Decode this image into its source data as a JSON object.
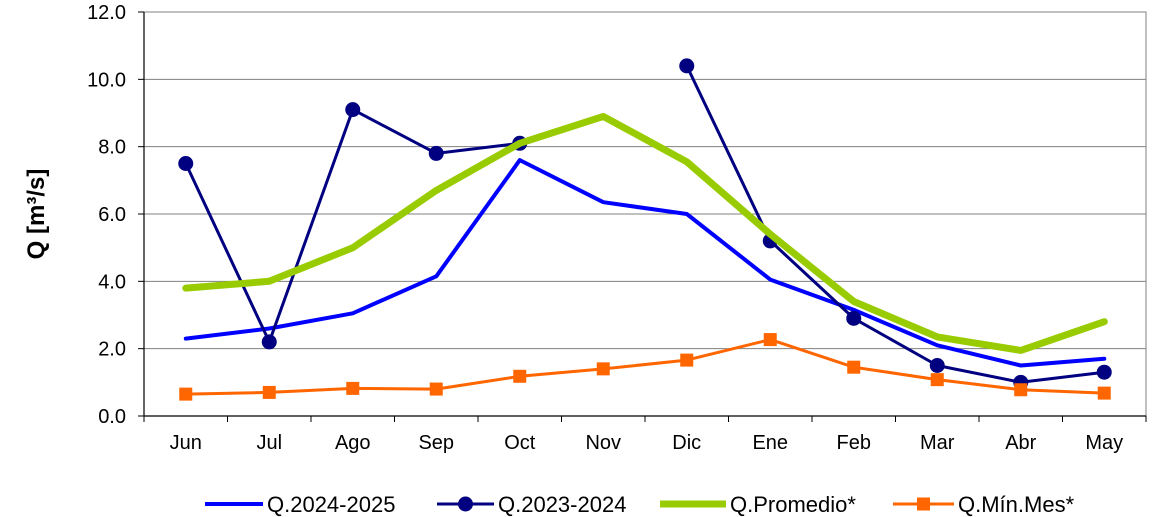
{
  "chart_data": {
    "type": "line",
    "title": "",
    "xlabel": "",
    "ylabel": "Q [m³/s]",
    "ylim": [
      0,
      12
    ],
    "yticks": [
      "0.0",
      "2.0",
      "4.0",
      "6.0",
      "8.0",
      "10.0",
      "12.0"
    ],
    "categories": [
      "Jun",
      "Jul",
      "Ago",
      "Sep",
      "Oct",
      "Nov",
      "Dic",
      "Ene",
      "Feb",
      "Mar",
      "Abr",
      "May"
    ],
    "grid": true,
    "legend_position": "bottom",
    "series": [
      {
        "name": "Q.2024-2025",
        "color": "#0000ff",
        "marker": "none",
        "values": [
          2.3,
          2.6,
          3.05,
          4.15,
          7.6,
          6.35,
          6.0,
          4.05,
          3.15,
          2.1,
          1.5,
          1.7
        ]
      },
      {
        "name": "Q.2023-2024",
        "color": "#000080",
        "marker": "circle",
        "values": [
          7.5,
          2.2,
          9.1,
          7.8,
          8.1,
          null,
          10.4,
          5.2,
          2.9,
          1.5,
          1.0,
          1.3
        ]
      },
      {
        "name": "Q.Promedio*",
        "color": "#99cc00",
        "marker": "none",
        "values": [
          3.8,
          4.0,
          5.0,
          6.7,
          8.1,
          8.9,
          7.55,
          5.4,
          3.4,
          2.35,
          1.95,
          2.8
        ]
      },
      {
        "name": "Q.Mín.Mes*",
        "color": "#ff6600",
        "marker": "square",
        "values": [
          0.65,
          0.7,
          0.82,
          0.8,
          1.18,
          1.4,
          1.66,
          2.27,
          1.45,
          1.08,
          0.78,
          0.68
        ]
      }
    ]
  }
}
